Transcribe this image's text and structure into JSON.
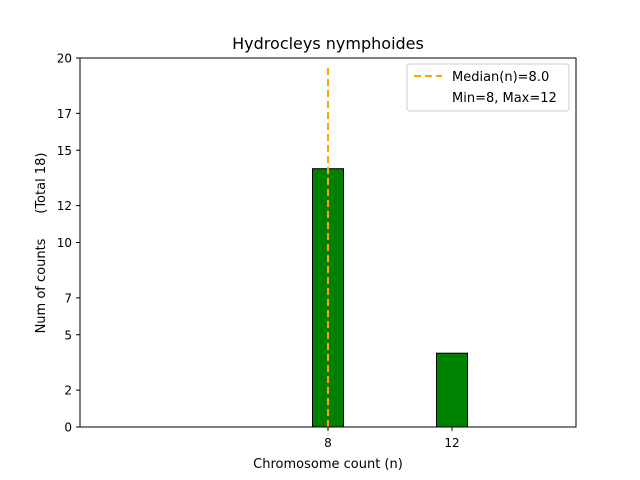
{
  "chart_data": {
    "type": "bar",
    "title": "Hydrocleys nymphoides",
    "xlabel": "Chromosome count (n)",
    "ylabel": "Num of counts      (Total 18)",
    "x": [
      8,
      12
    ],
    "values": [
      14,
      4
    ],
    "xticks": [
      8,
      12
    ],
    "yticks": [
      0,
      2,
      5,
      7,
      10,
      12,
      15,
      17,
      20
    ],
    "xlim": [
      0,
      16
    ],
    "ylim": [
      0,
      20
    ],
    "bar_color": "#008000",
    "median": 8.0,
    "median_color": "#FFA500",
    "legend": {
      "position": "top-right",
      "entries": [
        "Median(n)=8.0",
        "Min=8, Max=12"
      ]
    }
  }
}
